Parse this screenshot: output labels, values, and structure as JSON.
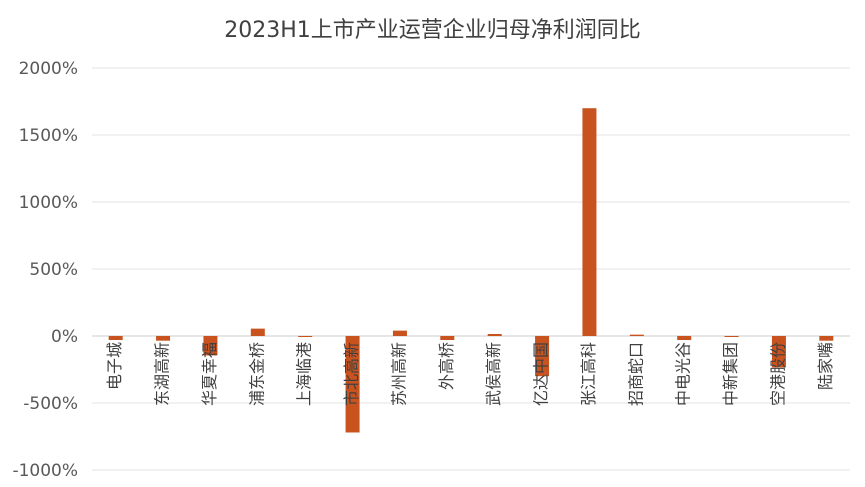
{
  "chart_data": {
    "type": "bar",
    "title": "2023H1上市产业运营企业归母净利润同比",
    "xlabel": "",
    "ylabel": "",
    "ylim": [
      -1000,
      2000
    ],
    "yticks": [
      2000,
      1500,
      1000,
      500,
      0,
      -500,
      -1000
    ],
    "ytick_labels": [
      "2000%",
      "1500%",
      "1000%",
      "500%",
      "0%",
      "-500%",
      "-1000%"
    ],
    "grid": true,
    "legend": "none",
    "bar_color": "#C9531F",
    "categories": [
      "电子城",
      "东湖高新",
      "华夏幸福",
      "浦东金桥",
      "上海临港",
      "市北高新",
      "苏州高新",
      "外高桥",
      "武侯高新",
      "亿达中国",
      "张江高科",
      "招商蛇口",
      "中电光谷",
      "中新集团",
      "空港股份",
      "陆家嘴"
    ],
    "values": [
      -30,
      -35,
      -145,
      55,
      -5,
      -720,
      40,
      -30,
      15,
      -300,
      1700,
      10,
      -30,
      -5,
      -235,
      -35
    ]
  }
}
